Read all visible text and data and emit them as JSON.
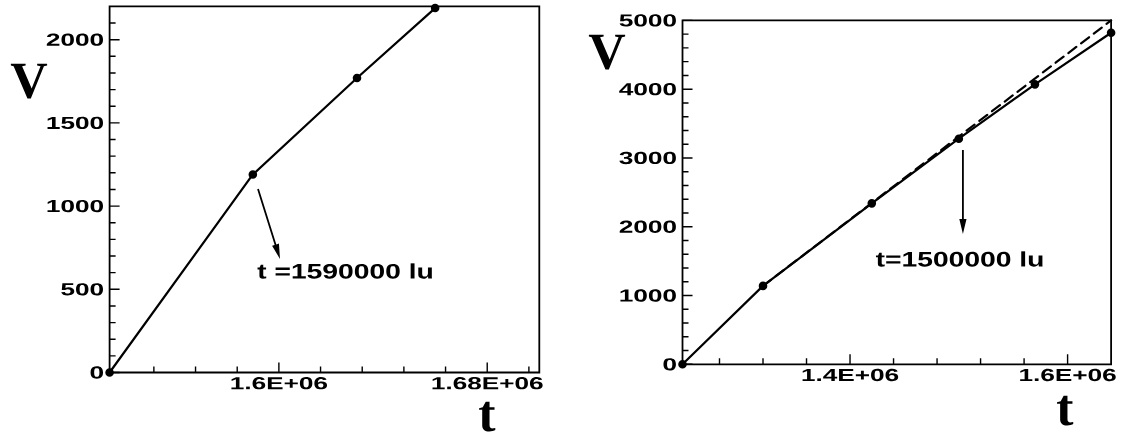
{
  "chart_data": [
    {
      "type": "line",
      "xlabel": "t",
      "ylabel": "V",
      "x": [
        1535000,
        1590000,
        1630000,
        1660000
      ],
      "series": [
        {
          "color": "#000000",
          "values": [
            0,
            1190,
            1770,
            2190
          ]
        }
      ],
      "marker": "circle",
      "line_style": "solid",
      "xlim": [
        1535000,
        1700000
      ],
      "ylim": [
        0,
        2200
      ],
      "xticks": [
        {
          "value": 1552000,
          "label": null
        },
        {
          "value": 1568000,
          "label": null
        },
        {
          "value": 1584000,
          "label": null
        },
        {
          "value": 1600000,
          "label": "1.6E+06"
        },
        {
          "value": 1616000,
          "label": null
        },
        {
          "value": 1632000,
          "label": null
        },
        {
          "value": 1648000,
          "label": null
        },
        {
          "value": 1664000,
          "label": null
        },
        {
          "value": 1680000,
          "label": "1.68E+06"
        },
        {
          "value": 1696000,
          "label": null
        }
      ],
      "yticks": [
        0,
        {
          "value": 100,
          "label": null
        },
        {
          "value": 200,
          "label": null
        },
        {
          "value": 300,
          "label": null
        },
        {
          "value": 400,
          "label": null
        },
        500,
        {
          "value": 600,
          "label": null
        },
        {
          "value": 700,
          "label": null
        },
        {
          "value": 800,
          "label": null
        },
        {
          "value": 900,
          "label": null
        },
        1000,
        {
          "value": 1100,
          "label": null
        },
        {
          "value": 1200,
          "label": null
        },
        {
          "value": 1300,
          "label": null
        },
        {
          "value": 1400,
          "label": null
        },
        1500,
        {
          "value": 1600,
          "label": null
        },
        {
          "value": 1700,
          "label": null
        },
        {
          "value": 1800,
          "label": null
        },
        {
          "value": 1900,
          "label": null
        },
        2000,
        {
          "value": 2100,
          "label": null
        }
      ],
      "annotations": [
        "t =1590000  lu"
      ]
    },
    {
      "type": "line",
      "xlabel": "t",
      "ylabel": "V",
      "x": [
        1246000,
        1320000,
        1420000,
        1500000,
        1570000,
        1640000
      ],
      "series": [
        {
          "color": "#000000",
          "values": [
            0,
            1140,
            2340,
            3280,
            4070,
            4820
          ]
        },
        {
          "type": "line",
          "color": "#000000",
          "x": [
            1320000,
            1640000
          ],
          "values": [
            1140,
            5000
          ],
          "line_style": "dashed",
          "marker": "none"
        }
      ],
      "marker": "circle",
      "line_style": "solid",
      "xlim": [
        1246000,
        1640000
      ],
      "ylim": [
        0,
        5000
      ],
      "xticks": [
        {
          "value": 1280000,
          "label": null
        },
        {
          "value": 1320000,
          "label": null
        },
        {
          "value": 1360000,
          "label": null
        },
        {
          "value": 1400000,
          "label": "1.4E+06"
        },
        {
          "value": 1440000,
          "label": null
        },
        {
          "value": 1480000,
          "label": null
        },
        {
          "value": 1520000,
          "label": null
        },
        {
          "value": 1560000,
          "label": null
        },
        {
          "value": 1600000,
          "label": "1.6E+06"
        }
      ],
      "yticks": [
        0,
        {
          "value": 200,
          "label": null
        },
        {
          "value": 400,
          "label": null
        },
        {
          "value": 600,
          "label": null
        },
        {
          "value": 800,
          "label": null
        },
        1000,
        {
          "value": 1200,
          "label": null
        },
        {
          "value": 1400,
          "label": null
        },
        {
          "value": 1600,
          "label": null
        },
        {
          "value": 1800,
          "label": null
        },
        2000,
        {
          "value": 2200,
          "label": null
        },
        {
          "value": 2400,
          "label": null
        },
        {
          "value": 2600,
          "label": null
        },
        {
          "value": 2800,
          "label": null
        },
        3000,
        {
          "value": 3200,
          "label": null
        },
        {
          "value": 3400,
          "label": null
        },
        {
          "value": 3600,
          "label": null
        },
        {
          "value": 3800,
          "label": null
        },
        4000,
        {
          "value": 4200,
          "label": null
        },
        {
          "value": 4400,
          "label": null
        },
        {
          "value": 4600,
          "label": null
        },
        {
          "value": 4800,
          "label": null
        },
        5000
      ],
      "annotations": [
        "t=1500000  lu"
      ]
    }
  ]
}
